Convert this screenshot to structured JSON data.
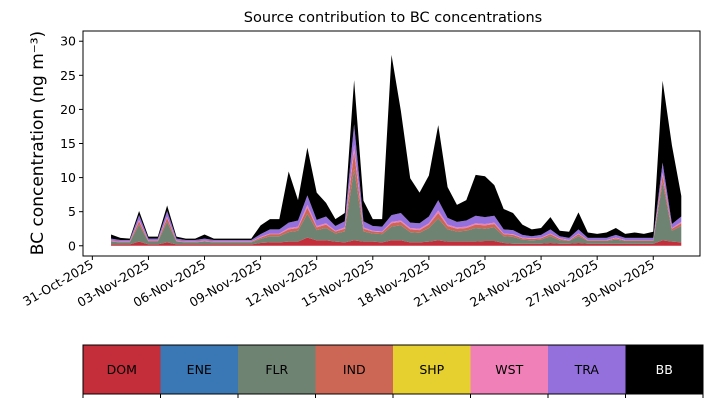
{
  "chart_data": {
    "type": "area",
    "stacked": true,
    "title": "Source contribution to BC concentrations",
    "xlabel": "",
    "ylabel": "BC concentration (ng m⁻³)",
    "xlim": [
      "2025-10-30T12:00",
      "2025-12-02T12:00"
    ],
    "ylim": [
      -1.5,
      31.5
    ],
    "yticks": [
      0,
      5,
      10,
      15,
      20,
      25,
      30
    ],
    "xticks": [
      "31-Oct-2025",
      "03-Nov-2025",
      "06-Nov-2025",
      "09-Nov-2025",
      "12-Nov-2025",
      "15-Nov-2025",
      "18-Nov-2025",
      "21-Nov-2025",
      "24-Nov-2025",
      "27-Nov-2025",
      "30-Nov-2025"
    ],
    "grid": false,
    "legend_position": "bottom",
    "x": [
      "2025-11-01T00:00",
      "2025-11-01T12:00",
      "2025-11-02T00:00",
      "2025-11-02T12:00",
      "2025-11-03T00:00",
      "2025-11-03T12:00",
      "2025-11-04T00:00",
      "2025-11-04T12:00",
      "2025-11-05T00:00",
      "2025-11-05T12:00",
      "2025-11-06T00:00",
      "2025-11-06T12:00",
      "2025-11-07T00:00",
      "2025-11-07T12:00",
      "2025-11-08T00:00",
      "2025-11-08T12:00",
      "2025-11-09T00:00",
      "2025-11-09T12:00",
      "2025-11-10T00:00",
      "2025-11-10T12:00",
      "2025-11-11T00:00",
      "2025-11-11T12:00",
      "2025-11-12T00:00",
      "2025-11-12T12:00",
      "2025-11-13T00:00",
      "2025-11-13T12:00",
      "2025-11-14T00:00",
      "2025-11-14T12:00",
      "2025-11-15T00:00",
      "2025-11-15T12:00",
      "2025-11-16T00:00",
      "2025-11-16T12:00",
      "2025-11-17T00:00",
      "2025-11-17T12:00",
      "2025-11-18T00:00",
      "2025-11-18T12:00",
      "2025-11-19T00:00",
      "2025-11-19T12:00",
      "2025-11-20T00:00",
      "2025-11-20T12:00",
      "2025-11-21T00:00",
      "2025-11-21T12:00",
      "2025-11-22T00:00",
      "2025-11-22T12:00",
      "2025-11-23T00:00",
      "2025-11-23T12:00",
      "2025-11-24T00:00",
      "2025-11-24T12:00",
      "2025-11-25T00:00",
      "2025-11-25T12:00",
      "2025-11-26T00:00",
      "2025-11-26T12:00",
      "2025-11-27T00:00",
      "2025-11-27T12:00",
      "2025-11-28T00:00",
      "2025-11-28T12:00",
      "2025-11-29T00:00",
      "2025-11-29T12:00",
      "2025-11-30T00:00",
      "2025-11-30T12:00",
      "2025-12-01T00:00",
      "2025-12-01T12:00"
    ],
    "series": [
      {
        "name": "DOM",
        "color": "#c42e3a",
        "values": [
          0.2,
          0.2,
          0.2,
          0.6,
          0.2,
          0.2,
          0.5,
          0.2,
          0.2,
          0.2,
          0.2,
          0.2,
          0.2,
          0.2,
          0.2,
          0.2,
          0.4,
          0.5,
          0.5,
          0.6,
          0.6,
          1.2,
          0.8,
          0.8,
          0.6,
          0.5,
          0.8,
          0.6,
          0.6,
          0.5,
          0.8,
          0.8,
          0.5,
          0.5,
          0.6,
          0.8,
          0.6,
          0.6,
          0.6,
          0.6,
          0.7,
          0.7,
          0.4,
          0.3,
          0.3,
          0.3,
          0.3,
          0.4,
          0.3,
          0.3,
          0.4,
          0.3,
          0.3,
          0.3,
          0.3,
          0.3,
          0.3,
          0.3,
          0.3,
          0.8,
          0.6,
          0.5
        ]
      },
      {
        "name": "ENE",
        "color": "#3a78b5",
        "values": [
          0.0,
          0.0,
          0.0,
          0.0,
          0.0,
          0.0,
          0.0,
          0.0,
          0.0,
          0.0,
          0.0,
          0.0,
          0.0,
          0.0,
          0.0,
          0.0,
          0.0,
          0.0,
          0.0,
          0.0,
          0.0,
          0.0,
          0.0,
          0.0,
          0.0,
          0.0,
          0.0,
          0.0,
          0.0,
          0.0,
          0.0,
          0.0,
          0.0,
          0.0,
          0.0,
          0.0,
          0.0,
          0.0,
          0.0,
          0.0,
          0.0,
          0.0,
          0.0,
          0.0,
          0.0,
          0.0,
          0.0,
          0.0,
          0.0,
          0.0,
          0.0,
          0.0,
          0.0,
          0.0,
          0.0,
          0.0,
          0.0,
          0.0,
          0.0,
          0.0,
          0.0,
          0.0
        ]
      },
      {
        "name": "FLR",
        "color": "#6f8373",
        "values": [
          0.4,
          0.3,
          0.3,
          2.5,
          0.4,
          0.4,
          3.0,
          0.4,
          0.3,
          0.3,
          0.4,
          0.3,
          0.3,
          0.3,
          0.3,
          0.3,
          0.6,
          0.9,
          0.9,
          1.4,
          1.6,
          3.5,
          1.5,
          1.8,
          1.2,
          1.6,
          10.5,
          1.5,
          1.2,
          1.2,
          2.0,
          2.2,
          1.5,
          1.4,
          2.0,
          3.2,
          1.8,
          1.5,
          1.6,
          2.0,
          1.8,
          2.0,
          1.0,
          1.0,
          0.6,
          0.5,
          0.6,
          1.0,
          0.5,
          0.4,
          1.0,
          0.4,
          0.4,
          0.4,
          0.6,
          0.4,
          0.4,
          0.4,
          0.4,
          8.5,
          1.6,
          2.4
        ]
      },
      {
        "name": "IND",
        "color": "#cc6655",
        "values": [
          0.1,
          0.1,
          0.1,
          0.5,
          0.1,
          0.1,
          0.6,
          0.1,
          0.1,
          0.1,
          0.1,
          0.1,
          0.1,
          0.1,
          0.1,
          0.1,
          0.2,
          0.3,
          0.3,
          0.4,
          0.4,
          0.9,
          0.4,
          0.5,
          0.3,
          0.4,
          2.5,
          0.4,
          0.3,
          0.3,
          0.5,
          0.5,
          0.4,
          0.4,
          0.5,
          0.8,
          0.5,
          0.4,
          0.4,
          0.5,
          0.5,
          0.5,
          0.3,
          0.3,
          0.2,
          0.2,
          0.2,
          0.3,
          0.2,
          0.1,
          0.3,
          0.1,
          0.1,
          0.1,
          0.2,
          0.1,
          0.1,
          0.1,
          0.1,
          1.0,
          0.3,
          0.4
        ]
      },
      {
        "name": "SHP",
        "color": "#e6d030",
        "values": [
          0.0,
          0.0,
          0.0,
          0.0,
          0.0,
          0.0,
          0.0,
          0.0,
          0.0,
          0.0,
          0.0,
          0.0,
          0.0,
          0.0,
          0.0,
          0.0,
          0.0,
          0.0,
          0.0,
          0.0,
          0.0,
          0.0,
          0.0,
          0.0,
          0.0,
          0.0,
          0.0,
          0.0,
          0.0,
          0.0,
          0.0,
          0.0,
          0.0,
          0.0,
          0.0,
          0.0,
          0.0,
          0.0,
          0.0,
          0.0,
          0.0,
          0.0,
          0.0,
          0.0,
          0.0,
          0.0,
          0.0,
          0.0,
          0.0,
          0.0,
          0.0,
          0.0,
          0.0,
          0.0,
          0.0,
          0.0,
          0.0,
          0.0,
          0.0,
          0.0,
          0.0,
          0.0
        ]
      },
      {
        "name": "WST",
        "color": "#f080b8",
        "values": [
          0.05,
          0.05,
          0.05,
          0.2,
          0.05,
          0.05,
          0.2,
          0.05,
          0.05,
          0.05,
          0.05,
          0.05,
          0.05,
          0.05,
          0.05,
          0.05,
          0.1,
          0.1,
          0.1,
          0.2,
          0.2,
          0.4,
          0.2,
          0.2,
          0.1,
          0.2,
          1.0,
          0.2,
          0.1,
          0.1,
          0.2,
          0.2,
          0.2,
          0.2,
          0.2,
          0.4,
          0.2,
          0.2,
          0.2,
          0.2,
          0.2,
          0.2,
          0.1,
          0.1,
          0.1,
          0.1,
          0.1,
          0.1,
          0.1,
          0.05,
          0.1,
          0.05,
          0.05,
          0.05,
          0.1,
          0.05,
          0.05,
          0.05,
          0.05,
          0.4,
          0.1,
          0.2
        ]
      },
      {
        "name": "TRA",
        "color": "#9370db",
        "values": [
          0.3,
          0.2,
          0.2,
          0.7,
          0.3,
          0.3,
          0.8,
          0.3,
          0.2,
          0.2,
          0.3,
          0.2,
          0.2,
          0.2,
          0.2,
          0.2,
          0.4,
          0.6,
          0.6,
          0.8,
          0.9,
          1.4,
          0.9,
          1.0,
          0.7,
          0.9,
          3.0,
          0.9,
          0.7,
          0.7,
          1.0,
          1.1,
          0.8,
          0.8,
          1.0,
          1.5,
          1.0,
          0.8,
          0.9,
          1.1,
          1.0,
          1.0,
          0.6,
          0.6,
          0.4,
          0.3,
          0.4,
          0.6,
          0.3,
          0.3,
          0.6,
          0.3,
          0.3,
          0.3,
          0.4,
          0.3,
          0.3,
          0.3,
          0.3,
          1.5,
          0.6,
          0.8
        ]
      },
      {
        "name": "BB",
        "color": "#000000",
        "values": [
          0.6,
          0.3,
          0.2,
          0.6,
          0.3,
          0.3,
          0.8,
          0.3,
          0.2,
          0.2,
          0.6,
          0.2,
          0.2,
          0.2,
          0.2,
          0.2,
          1.3,
          1.5,
          1.5,
          7.5,
          3.0,
          7.0,
          4.0,
          2.0,
          1.0,
          1.2,
          6.5,
          3.0,
          1.0,
          1.1,
          23.5,
          15.0,
          6.5,
          4.5,
          6.0,
          11.0,
          4.5,
          2.5,
          3.0,
          6.0,
          6.0,
          4.5,
          3.0,
          2.5,
          1.5,
          1.0,
          1.0,
          1.8,
          0.8,
          0.9,
          2.5,
          0.8,
          0.6,
          0.8,
          1.0,
          0.6,
          0.8,
          0.6,
          0.9,
          12.0,
          11.5,
          3.0
        ]
      }
    ]
  }
}
